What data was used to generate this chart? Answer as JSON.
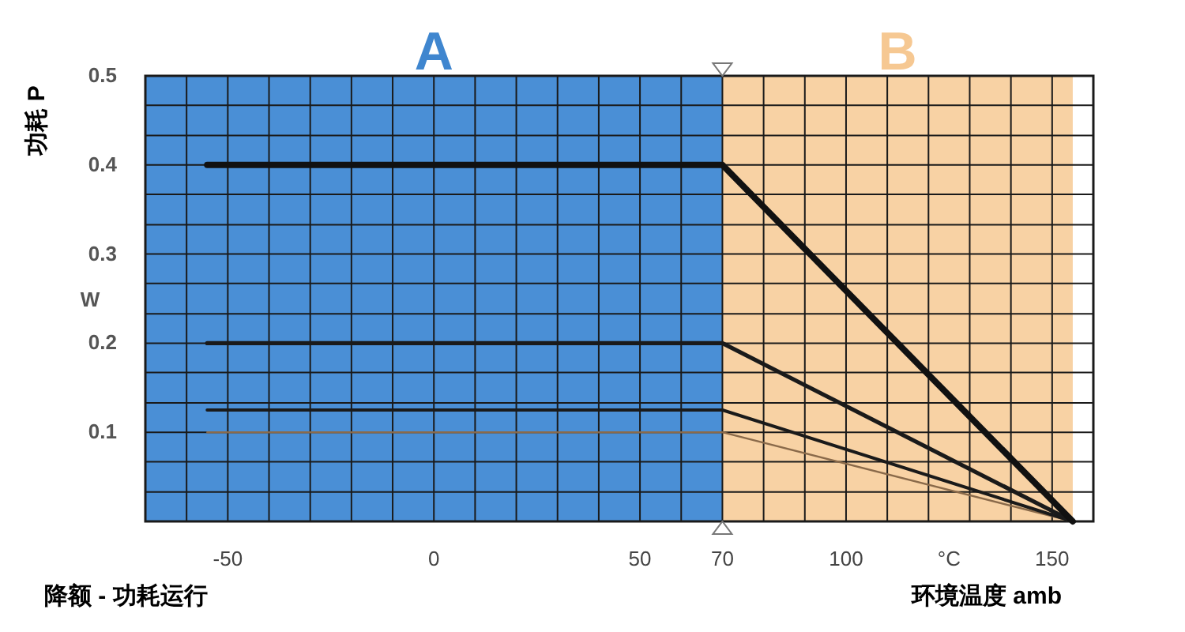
{
  "chart_data": {
    "type": "line",
    "title": "降额 - 功耗运行",
    "xlabel": "环境温度 amb",
    "ylabel": "功耗 P",
    "xlim": [
      -70,
      160
    ],
    "ylim": [
      0,
      0.5
    ],
    "xticks": [
      {
        "value": -60,
        "label": null
      },
      -50,
      {
        "value": -40,
        "label": null
      },
      {
        "value": -30,
        "label": null
      },
      {
        "value": -20,
        "label": null
      },
      {
        "value": -10,
        "label": null
      },
      0,
      {
        "value": 10,
        "label": null
      },
      {
        "value": 20,
        "label": null
      },
      {
        "value": 30,
        "label": null
      },
      {
        "value": 40,
        "label": null
      },
      50,
      {
        "value": 60,
        "label": null
      },
      70,
      {
        "value": 80,
        "label": null
      },
      {
        "value": 90,
        "label": null
      },
      100,
      {
        "value": 110,
        "label": null
      },
      {
        "value": 120,
        "label": null
      },
      {
        "value": 130,
        "label": null
      },
      {
        "value": 140,
        "label": null
      },
      150
    ],
    "yticks": [
      {
        "value": 0.033,
        "label": null
      },
      {
        "value": 0.067,
        "label": null
      },
      0.1,
      {
        "value": 0.133,
        "label": null
      },
      {
        "value": 0.167,
        "label": null
      },
      0.2,
      {
        "value": 0.233,
        "label": null
      },
      {
        "value": 0.267,
        "label": null
      },
      0.3,
      {
        "value": 0.333,
        "label": null
      },
      {
        "value": 0.367,
        "label": null
      },
      0.4,
      {
        "value": 0.433,
        "label": null
      },
      {
        "value": 0.467,
        "label": null
      },
      0.5
    ],
    "grid": true,
    "bands": [
      {
        "axis": "x",
        "from": -70,
        "to": 70,
        "label": "A",
        "color": "#4a8fd6"
      },
      {
        "axis": "x",
        "from": 70,
        "to": 155,
        "label": "B",
        "color": "#f8d2a4"
      }
    ],
    "annotations": [
      "W",
      "°C"
    ],
    "series": [
      {
        "color": "#8a6a4a",
        "x": [
          -55,
          70,
          155
        ],
        "values": [
          0.1,
          0.1,
          0
        ]
      },
      {
        "color": "#1a1a1a",
        "x": [
          -55,
          70,
          155
        ],
        "values": [
          0.125,
          0.125,
          0
        ]
      },
      {
        "color": "#1a1a1a",
        "x": [
          -55,
          70,
          155
        ],
        "values": [
          0.2,
          0.2,
          0
        ]
      },
      {
        "color": "#111111",
        "x": [
          -55,
          70,
          155
        ],
        "values": [
          0.4,
          0.4,
          0
        ]
      }
    ]
  }
}
